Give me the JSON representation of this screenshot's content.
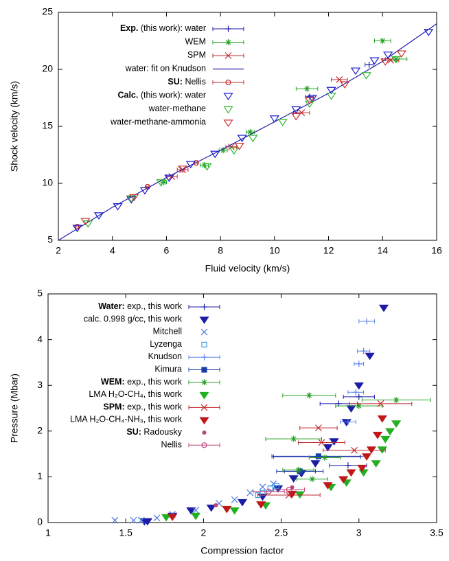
{
  "chart_data": [
    {
      "type": "scatter",
      "x_label": "Fluid velocity (km/s)",
      "y_label": "Shock velocity (km/s)",
      "xlim": [
        2,
        16
      ],
      "ylim": [
        5,
        25
      ],
      "xticks": [
        2,
        4,
        6,
        8,
        10,
        12,
        14,
        16
      ],
      "yticks": [
        5,
        10,
        15,
        20,
        25
      ],
      "legend": "upper left",
      "series": [
        {
          "group": "Exp.",
          "name": "(this work): water",
          "color": "#1c1ca8",
          "marker": "plus",
          "x": [
            13.5,
            11.3
          ],
          "values": [
            20.4,
            17.6
          ],
          "xerr": [
            0.15,
            0.15
          ]
        },
        {
          "name": "WEM",
          "color": "#22a022",
          "marker": "star",
          "x": [
            14.0,
            11.2,
            9.1,
            8.1,
            7.4,
            5.9,
            14.5
          ],
          "values": [
            22.5,
            18.3,
            14.5,
            12.9,
            11.6,
            10.1,
            20.9
          ],
          "xerr": [
            0.3,
            0.4,
            0.15,
            0.15,
            0.15,
            0.1,
            0.4
          ]
        },
        {
          "name": "SPM",
          "color": "#c0282d",
          "marker": "x",
          "x": [
            14.3,
            12.4,
            11.0,
            8.4,
            6.6,
            6.2
          ],
          "values": [
            20.8,
            19.1,
            16.2,
            13.2,
            11.2,
            10.6
          ],
          "xerr": [
            0.3,
            0.3,
            0.3,
            0.2,
            0.2,
            0.2
          ]
        },
        {
          "name": "water: fit on Knudson",
          "color": "#1c1ca8",
          "marker": "line",
          "x": [
            2,
            4,
            6,
            8,
            10,
            12,
            14,
            16
          ],
          "values": [
            5.0,
            7.9,
            10.5,
            12.9,
            15.4,
            17.9,
            20.7,
            24.0
          ]
        },
        {
          "group": "SU:",
          "name": "Nellis",
          "color": "#c0282d",
          "marker": "circle",
          "x": [
            2.7,
            5.3,
            7.1
          ],
          "values": [
            6.2,
            9.7,
            11.8
          ],
          "xerr": [
            0.05,
            0.05,
            0.05
          ]
        },
        {
          "group": "Calc.",
          "name": "(this work): water",
          "color": "#1c1cd0",
          "marker": "triangle",
          "x": [
            2.7,
            3.5,
            4.2,
            4.7,
            5.2,
            6.1,
            6.9,
            7.8,
            8.8,
            10.0,
            10.8,
            11.4,
            12.1,
            13.0,
            13.7,
            14.2,
            15.7
          ],
          "values": [
            6.1,
            7.2,
            8.0,
            8.6,
            9.4,
            10.5,
            11.7,
            12.6,
            14.0,
            15.7,
            16.5,
            17.5,
            18.2,
            19.9,
            20.8,
            21.3,
            23.3
          ]
        },
        {
          "name": "water-methane",
          "color": "#33b833",
          "marker": "triangle",
          "x": [
            3.1,
            4.7,
            5.8,
            7.5,
            8.5,
            9.2,
            10.3,
            11.3,
            12.1,
            13.4,
            14.5
          ],
          "values": [
            6.5,
            8.7,
            10.1,
            11.5,
            12.9,
            14.0,
            15.4,
            17.0,
            17.7,
            19.5,
            20.9
          ]
        },
        {
          "name": "water-methane-ammonia",
          "color": "#d03030",
          "marker": "triangle",
          "x": [
            3.0,
            4.8,
            6.6,
            8.7,
            10.8,
            11.3,
            12.6,
            14.1,
            14.7
          ],
          "values": [
            6.7,
            8.8,
            11.3,
            13.3,
            15.9,
            17.3,
            18.7,
            20.7,
            21.4
          ]
        }
      ]
    },
    {
      "type": "scatter",
      "x_label": "Compression factor",
      "y_label": "Pressure (Mbar)",
      "xlim": [
        1,
        3.5
      ],
      "ylim": [
        0,
        5
      ],
      "xticks": [
        1,
        1.5,
        2,
        2.5,
        3,
        3.5
      ],
      "yticks": [
        0,
        1,
        2,
        3,
        4,
        5
      ],
      "legend": "upper left",
      "series": [
        {
          "group": "Water:",
          "name": "exp., this work",
          "color": "#1c1ca8",
          "marker": "plus",
          "x": [
            2.93,
            2.73,
            3.0,
            2.87,
            2.62
          ],
          "values": [
            1.25,
            1.44,
            2.75,
            2.6,
            1.12
          ],
          "xerr": [
            0.12,
            0.28,
            0.1,
            0.12,
            0.1
          ]
        },
        {
          "name": "calc. 0.998 g/cc, this work",
          "color": "#1c1ca8",
          "marker": "triangle-filled",
          "x": [
            1.62,
            1.64,
            1.8,
            1.92,
            2.05,
            2.25,
            2.38,
            2.48,
            2.58,
            2.63,
            2.72,
            2.8,
            2.84,
            2.92,
            2.95,
            3.0,
            3.07,
            3.16
          ],
          "values": [
            0.03,
            0.03,
            0.15,
            0.27,
            0.33,
            0.45,
            0.57,
            0.75,
            0.97,
            1.08,
            1.3,
            1.65,
            1.78,
            2.2,
            2.5,
            3.0,
            3.65,
            4.7
          ]
        },
        {
          "name": "Mitchell",
          "color": "#4a7ae0",
          "marker": "x",
          "x": [
            1.43,
            1.55,
            1.6,
            1.7,
            1.8,
            1.95,
            2.1,
            2.2,
            2.3,
            2.38,
            2.45
          ],
          "values": [
            0.05,
            0.05,
            0.05,
            0.1,
            0.18,
            0.27,
            0.42,
            0.5,
            0.65,
            0.78,
            0.85
          ]
        },
        {
          "name": "Lyzenga",
          "color": "#3a9ae0",
          "marker": "square",
          "x": [
            2.35,
            2.38,
            2.43,
            2.47
          ],
          "values": [
            0.6,
            0.65,
            0.75,
            0.8
          ]
        },
        {
          "name": "Knudson",
          "color": "#5a82e8",
          "marker": "plus",
          "x": [
            3.05,
            3.03,
            3.0,
            2.98,
            2.93
          ],
          "values": [
            4.4,
            3.75,
            3.47,
            2.85,
            2.2
          ],
          "xerr": [
            0.05,
            0.04,
            0.03,
            0.05,
            0.05
          ]
        },
        {
          "name": "Kimura",
          "color": "#1c3ca8",
          "marker": "square-filled",
          "x": [
            2.74,
            2.62
          ],
          "values": [
            1.45,
            1.12
          ],
          "xerr": [
            0.3,
            0.15
          ]
        },
        {
          "group": "WEM:",
          "name": "exp., this work",
          "color": "#22a022",
          "marker": "star",
          "x": [
            2.68,
            3.24,
            3.0,
            2.58,
            2.78,
            2.61,
            2.7
          ],
          "values": [
            2.78,
            2.68,
            2.55,
            1.83,
            1.42,
            1.15,
            0.95
          ],
          "xerr": [
            0.17,
            0.22,
            0.15,
            0.18,
            0.1,
            0.1,
            0.1
          ]
        },
        {
          "name": "LMA H₂O-CH₄, this work",
          "color": "#22b022",
          "marker": "triangle-filled",
          "x": [
            1.76,
            1.95,
            2.2,
            2.4,
            2.62,
            2.82,
            2.92,
            3.03,
            3.11,
            3.15,
            3.17,
            3.2,
            3.24
          ],
          "values": [
            0.12,
            0.15,
            0.27,
            0.38,
            0.62,
            0.78,
            0.88,
            1.1,
            1.3,
            1.6,
            1.83,
            2.0,
            2.17
          ]
        },
        {
          "group": "SPM:",
          "name": "exp., this work",
          "color": "#c0282d",
          "marker": "x",
          "x": [
            2.74,
            3.14,
            2.97,
            2.76,
            2.55
          ],
          "values": [
            2.07,
            2.6,
            1.58,
            1.75,
            0.6
          ],
          "xerr": [
            0.12,
            0.2,
            0.2,
            0.15,
            0.2
          ]
        },
        {
          "name": "LMA H₂O-CH₄-NH₃, this work",
          "color": "#c01818",
          "marker": "triangle-filled",
          "x": [
            1.8,
            2.15,
            2.37,
            2.57,
            2.8,
            2.9,
            2.95,
            3.02,
            3.05,
            3.08,
            3.12,
            3.15
          ],
          "values": [
            0.13,
            0.3,
            0.4,
            0.63,
            0.82,
            0.95,
            1.1,
            1.2,
            1.45,
            1.6,
            1.92,
            2.28
          ]
        },
        {
          "group": "SU:",
          "name": "Radousky",
          "color": "#c0407a",
          "marker": "dot",
          "x": [
            2.08,
            2.57
          ],
          "values": [
            0.38,
            0.77
          ]
        },
        {
          "name": "Nellis",
          "color": "#c0407a",
          "marker": "circle",
          "x": [
            2.42,
            2.55
          ],
          "values": [
            0.68,
            0.72
          ],
          "xerr": [
            0.1,
            0.1
          ]
        }
      ]
    }
  ]
}
